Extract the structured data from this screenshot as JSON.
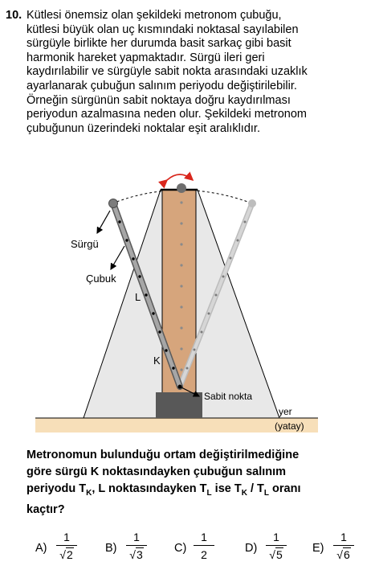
{
  "question": {
    "number": "10.",
    "lines": [
      "Kütlesi önemsiz olan şekildeki metronom çubuğu,",
      "kütlesi büyük olan uç kısmındaki noktasal sayılabilen",
      "sürgüyle birlikte her durumda basit sarkaç gibi basit",
      "harmonik hareket yapmaktadır. Sürgü ileri geri",
      "kaydırılabilir ve sürgüyle sabit nokta arasındaki uzaklık",
      "ayarlanarak çubuğun salınım periyodu değiştirilebilir.",
      "Örneğin sürgünün sabit noktaya doğru kaydırılması",
      "periyodun azalmasına neden olur. Şekildeki metronom",
      "çubuğunun üzerindeki noktalar eşit aralıklıdır."
    ],
    "prompt_lines": [
      "Metronomun bulunduğu ortam değiştirilmediğine",
      "göre sürgü K noktasındayken çubuğun salınım",
      "kaçtır?"
    ],
    "prompt_line3_parts": [
      "periyodu T",
      "K",
      ", L noktasındayken T",
      "L",
      " ise T",
      "K",
      " / T",
      "L",
      " oranı"
    ]
  },
  "figure": {
    "labels": {
      "surgu": "Sürgü",
      "cubuk": "Çubuk",
      "point_l": "L",
      "point_k": "K",
      "fixed_point": "Sabit nokta",
      "ground_1": "yer",
      "ground_2": "(yatay)"
    },
    "colors": {
      "ground": "#f7dfb9",
      "body": "#e8e8e8",
      "column": "#d6a57c",
      "base": "#585858",
      "arrow": "#d9261c"
    }
  },
  "choices": [
    {
      "letter": "A)",
      "num": "1",
      "den": "√2",
      "rad": "2",
      "sqrt": true
    },
    {
      "letter": "B)",
      "num": "1",
      "den": "√3",
      "rad": "3",
      "sqrt": true
    },
    {
      "letter": "C)",
      "num": "1",
      "den": "2",
      "rad": "2",
      "sqrt": false
    },
    {
      "letter": "D)",
      "num": "1",
      "den": "√5",
      "rad": "5",
      "sqrt": true
    },
    {
      "letter": "E)",
      "num": "1",
      "den": "√6",
      "rad": "6",
      "sqrt": true
    }
  ]
}
